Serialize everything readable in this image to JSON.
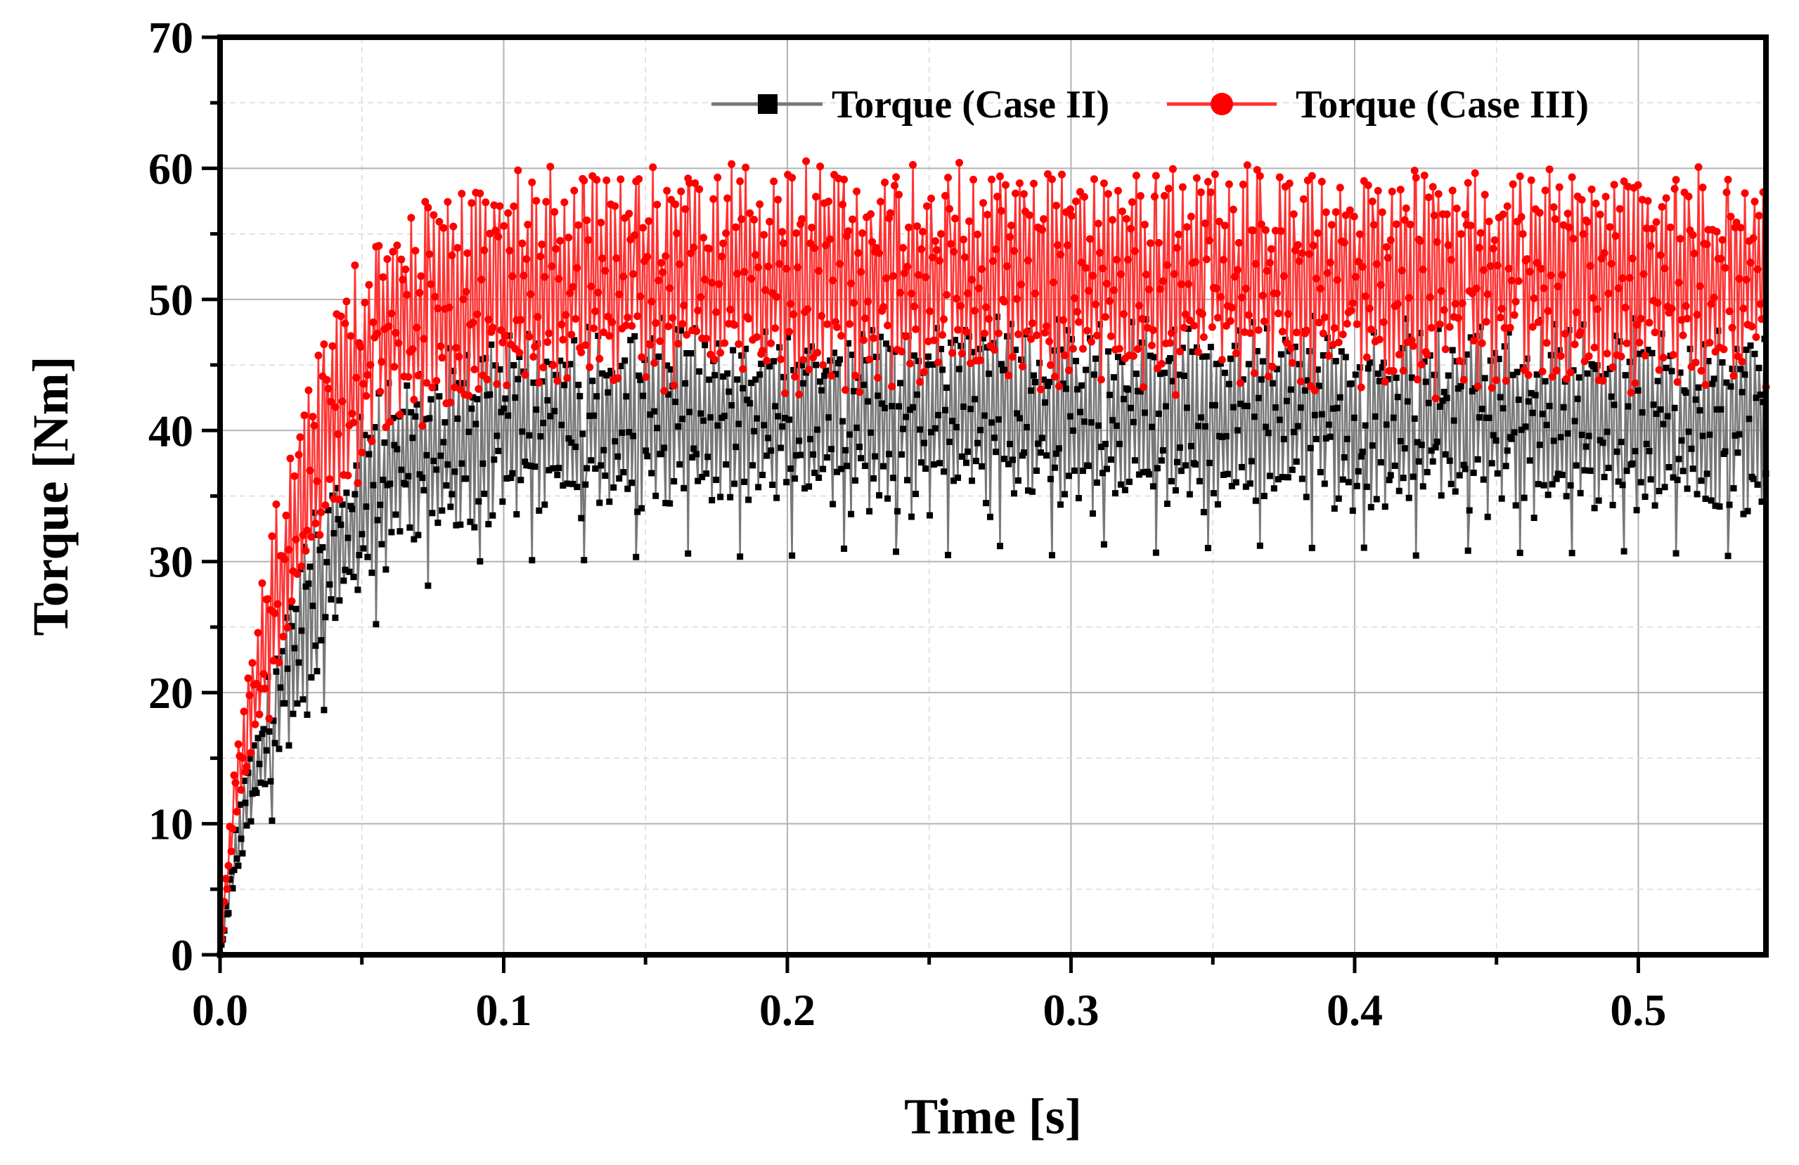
{
  "chart_data": {
    "type": "line",
    "title": "",
    "xlabel": "Time [s]",
    "ylabel": "Torque [Nm]",
    "xlim": [
      0,
      0.545
    ],
    "ylim": [
      0,
      70
    ],
    "xticks": [
      0.0,
      0.1,
      0.2,
      0.3,
      0.4,
      0.5
    ],
    "xtick_labels": [
      "0.0",
      "0.1",
      "0.2",
      "0.3",
      "0.4",
      "0.5"
    ],
    "yticks": [
      0,
      10,
      20,
      30,
      40,
      50,
      60,
      70
    ],
    "ytick_labels": [
      "0",
      "10",
      "20",
      "30",
      "40",
      "50",
      "60",
      "70"
    ],
    "grid": true,
    "legend": "top-right",
    "series": [
      {
        "name": "Torque (Case II)",
        "color": "#000000",
        "line_color": "#777777",
        "marker": "square",
        "x": [
          0,
          0.005,
          0.01,
          0.015,
          0.02,
          0.025,
          0.03,
          0.035,
          0.04,
          0.045,
          0.05,
          0.055,
          0.06,
          0.07,
          0.08,
          0.09,
          0.1,
          0.12,
          0.15,
          0.2,
          0.25,
          0.3,
          0.35,
          0.4,
          0.45,
          0.5,
          0.545
        ],
        "y": [
          0,
          7,
          12,
          16,
          19,
          22,
          25,
          28,
          30,
          32,
          34,
          35.5,
          36.5,
          38,
          39,
          39.8,
          40.3,
          40.6,
          40.8,
          41,
          41,
          41,
          41,
          41,
          41,
          41,
          41
        ],
        "ripple_amplitude": [
          0,
          2,
          3,
          4,
          5,
          6,
          6,
          6,
          6,
          6,
          6,
          6,
          6,
          6,
          6,
          6,
          6,
          6,
          6,
          6,
          6,
          6,
          6,
          6,
          6,
          6,
          6
        ],
        "min_dips": [
          29.9,
          29.5,
          29.8,
          30.2,
          29.9,
          30.3,
          29.9,
          30.3,
          29.9
        ]
      },
      {
        "name": "Torque (Case III)",
        "color": "#ff0000",
        "line_color": "#ff3333",
        "marker": "circle",
        "x": [
          0,
          0.005,
          0.01,
          0.015,
          0.02,
          0.025,
          0.03,
          0.035,
          0.04,
          0.045,
          0.05,
          0.055,
          0.06,
          0.07,
          0.08,
          0.09,
          0.1,
          0.12,
          0.15,
          0.2,
          0.25,
          0.3,
          0.35,
          0.4,
          0.45,
          0.5,
          0.545
        ],
        "y": [
          0,
          12,
          18,
          23,
          27,
          31,
          35,
          38,
          41,
          43,
          45,
          46.5,
          47.5,
          49,
          50,
          50.6,
          51,
          51.3,
          51.5,
          51.5,
          51.5,
          51.5,
          51.5,
          51.5,
          51.5,
          51.5,
          51.5
        ],
        "ripple_amplitude": [
          0,
          3,
          4,
          5,
          6,
          6.5,
          7,
          7,
          7,
          7,
          7,
          7,
          7,
          7,
          7,
          7,
          7,
          7,
          7,
          7,
          7,
          7,
          7,
          7,
          7,
          7,
          7
        ],
        "max_peaks": [
          58.4,
          59.2,
          59.3,
          59.4,
          59.3,
          59.4,
          59.3,
          59.4,
          59.3
        ]
      }
    ]
  }
}
